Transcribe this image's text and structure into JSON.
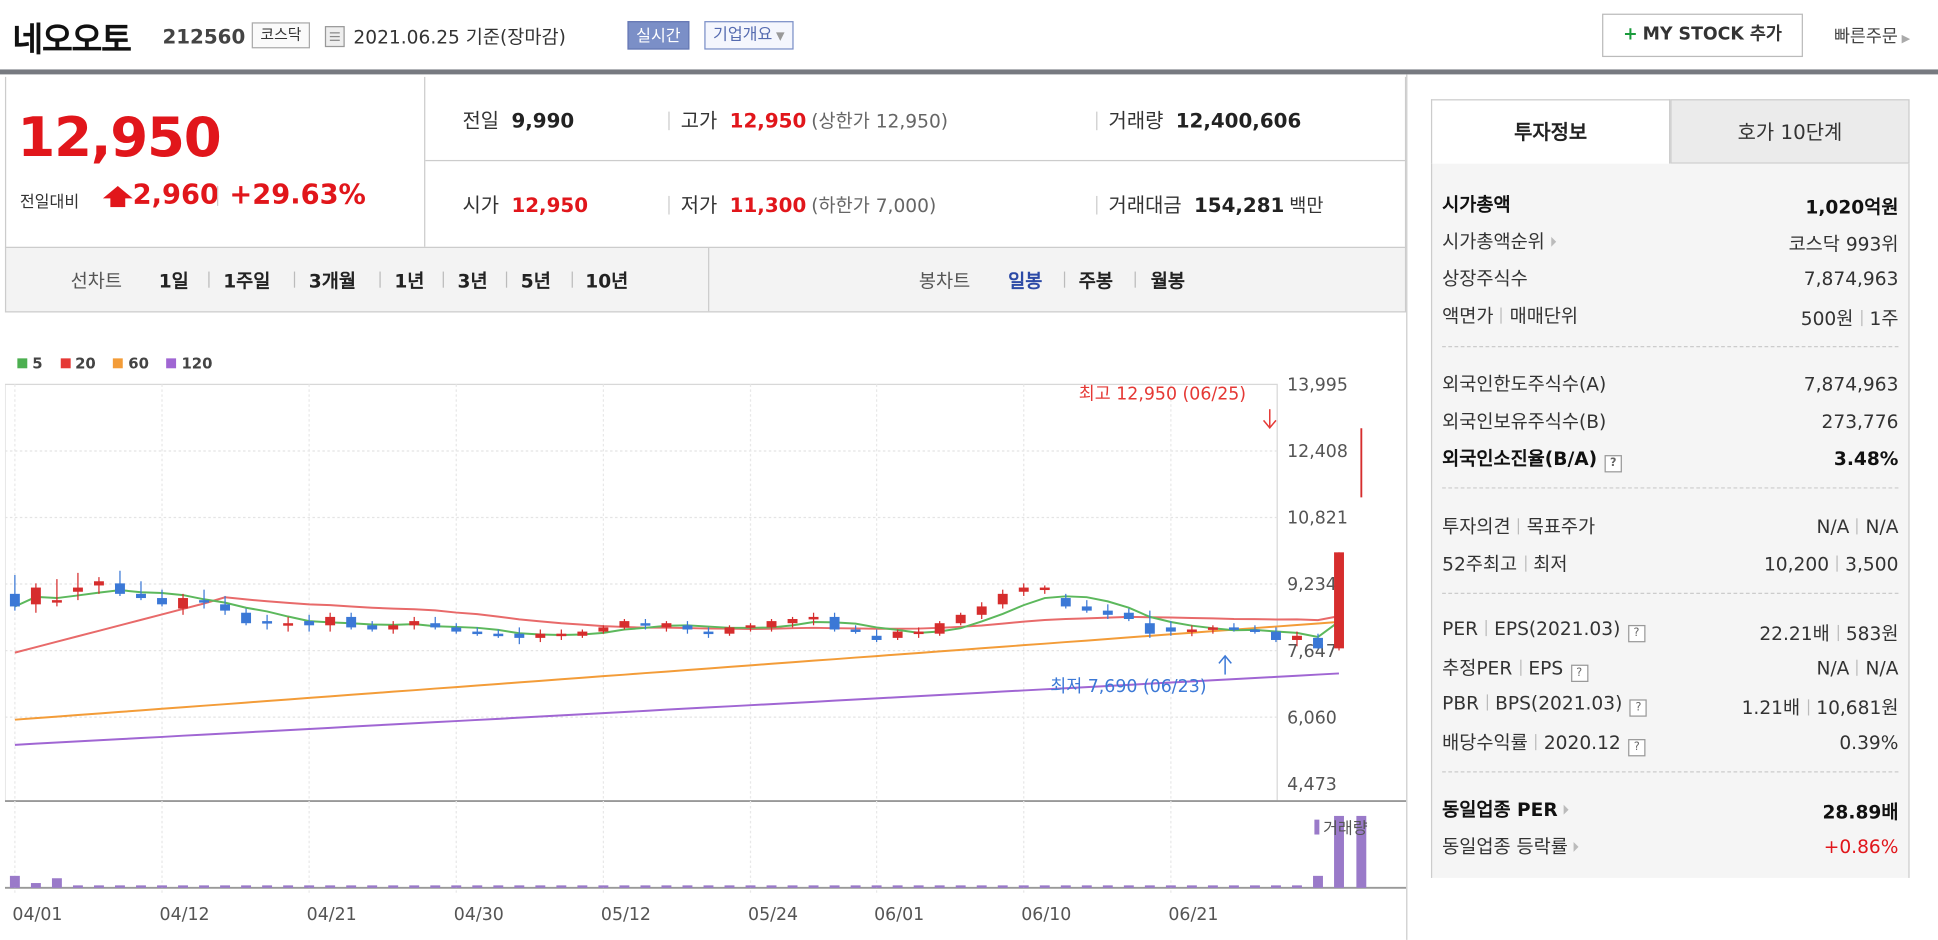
{
  "stock": {
    "name": "네오오토",
    "code": "212560",
    "market": "코스닥",
    "as_of": "2021.06.25 기준(장마감)",
    "live_label": "실시간",
    "corp_label": "기업개요",
    "mystock_label": "MY STOCK 추가",
    "mystock_plus": "+",
    "quick_order": "빠른주문"
  },
  "price": {
    "current": "12,950",
    "compare_label": "전일대비",
    "diff": "2,960",
    "rate": "+29.63%",
    "prev_label": "전일",
    "prev": "9,990",
    "high_label": "고가",
    "high": "12,950",
    "upper_limit": "(상한가 12,950)",
    "volume_label": "거래량",
    "volume": "12,400,606",
    "open_label": "시가",
    "open": "12,950",
    "low_label": "저가",
    "low": "11,300",
    "lower_limit": "(하한가 7,000)",
    "amount_label": "거래대금",
    "amount": "154,281",
    "amount_unit": "백만"
  },
  "chart_tabs": {
    "line_label": "선차트",
    "line_items": [
      "1일",
      "1주일",
      "3개월",
      "1년",
      "3년",
      "5년",
      "10년"
    ],
    "candle_label": "봉차트",
    "candle_items": [
      "일봉",
      "주봉",
      "월봉"
    ],
    "candle_selected": "일봉"
  },
  "chart_data": {
    "type": "candlestick",
    "legend": [
      {
        "name": "5",
        "color": "#4caf50"
      },
      {
        "name": "20",
        "color": "#e53935"
      },
      {
        "name": "60",
        "color": "#f39c38"
      },
      {
        "name": "120",
        "color": "#a066d3"
      }
    ],
    "y_ticks": [
      "13,995",
      "12,408",
      "10,821",
      "9,234",
      "7,647",
      "6,060",
      "4,473"
    ],
    "ylim": [
      4473,
      13995
    ],
    "x_ticks": [
      "04/01",
      "04/12",
      "04/21",
      "04/30",
      "05/12",
      "05/24",
      "06/01",
      "06/10",
      "06/21"
    ],
    "x_tick_index": [
      0,
      7,
      14,
      21,
      28,
      35,
      41,
      48,
      55
    ],
    "annotation_high": "최고 12,950 (06/25)",
    "annotation_low": "최저 7,690 (06/23)",
    "volume_label": "거래량",
    "candles": [
      [
        9000,
        9450,
        8600,
        8700
      ],
      [
        8750,
        9250,
        8550,
        9150
      ],
      [
        8800,
        9350,
        8700,
        8850
      ],
      [
        9050,
        9500,
        8850,
        9150
      ],
      [
        9200,
        9400,
        9000,
        9300
      ],
      [
        9250,
        9550,
        8950,
        9000
      ],
      [
        9000,
        9300,
        8850,
        8900
      ],
      [
        8900,
        9100,
        8700,
        8750
      ],
      [
        8650,
        9000,
        8500,
        8900
      ],
      [
        8850,
        9100,
        8650,
        8800
      ],
      [
        8750,
        8950,
        8500,
        8600
      ],
      [
        8550,
        8650,
        8250,
        8300
      ],
      [
        8350,
        8500,
        8150,
        8300
      ],
      [
        8250,
        8450,
        8100,
        8300
      ],
      [
        8350,
        8500,
        8100,
        8250
      ],
      [
        8250,
        8550,
        8100,
        8450
      ],
      [
        8450,
        8550,
        8150,
        8200
      ],
      [
        8250,
        8350,
        8100,
        8150
      ],
      [
        8150,
        8350,
        8050,
        8250
      ],
      [
        8250,
        8450,
        8150,
        8350
      ],
      [
        8300,
        8450,
        8150,
        8200
      ],
      [
        8200,
        8300,
        8050,
        8100
      ],
      [
        8100,
        8200,
        8000,
        8050
      ],
      [
        8050,
        8150,
        7950,
        8000
      ],
      [
        8050,
        8200,
        7800,
        7950
      ],
      [
        7950,
        8150,
        7850,
        8050
      ],
      [
        8000,
        8150,
        7900,
        8050
      ],
      [
        8000,
        8150,
        7950,
        8100
      ],
      [
        8100,
        8250,
        8050,
        8200
      ],
      [
        8200,
        8400,
        8150,
        8350
      ],
      [
        8300,
        8400,
        8150,
        8250
      ],
      [
        8200,
        8350,
        8100,
        8300
      ],
      [
        8250,
        8350,
        8050,
        8150
      ],
      [
        8100,
        8200,
        7950,
        8050
      ],
      [
        8050,
        8250,
        8000,
        8200
      ],
      [
        8200,
        8300,
        8100,
        8250
      ],
      [
        8200,
        8400,
        8100,
        8350
      ],
      [
        8300,
        8450,
        8200,
        8400
      ],
      [
        8400,
        8550,
        8250,
        8450
      ],
      [
        8450,
        8550,
        8100,
        8150
      ],
      [
        8150,
        8250,
        8050,
        8100
      ],
      [
        8000,
        8150,
        7850,
        7900
      ],
      [
        7950,
        8150,
        7900,
        8100
      ],
      [
        8050,
        8200,
        7950,
        8100
      ],
      [
        8050,
        8350,
        8000,
        8300
      ],
      [
        8300,
        8550,
        8250,
        8500
      ],
      [
        8500,
        8800,
        8400,
        8700
      ],
      [
        8750,
        9100,
        8650,
        9000
      ],
      [
        9050,
        9250,
        8950,
        9150
      ],
      [
        9100,
        9200,
        9000,
        9150
      ],
      [
        8900,
        9000,
        8650,
        8700
      ],
      [
        8700,
        8850,
        8550,
        8600
      ],
      [
        8600,
        8750,
        8400,
        8500
      ],
      [
        8550,
        8650,
        8350,
        8400
      ],
      [
        8300,
        8600,
        7950,
        8050
      ],
      [
        8200,
        8350,
        8000,
        8100
      ],
      [
        8100,
        8250,
        7990,
        8150
      ],
      [
        8150,
        8250,
        8050,
        8200
      ],
      [
        8200,
        8300,
        8100,
        8150
      ],
      [
        8150,
        8250,
        8050,
        8100
      ],
      [
        8100,
        8200,
        7850,
        7900
      ],
      [
        7900,
        8100,
        7750,
        8000
      ],
      [
        7950,
        8050,
        7690,
        7700
      ],
      [
        7700,
        9990,
        7650,
        9990
      ]
    ],
    "volumes": [
      5,
      2,
      4,
      1,
      1,
      1,
      1,
      1,
      1,
      1,
      1,
      1,
      1,
      1,
      1,
      0.5,
      0.5,
      0.5,
      0.5,
      0.5,
      0.5,
      1,
      0.5,
      0.5,
      0.5,
      0.5,
      0.5,
      0.5,
      0.5,
      0.5,
      0.5,
      0.5,
      0.5,
      0.5,
      0.5,
      0.5,
      0.5,
      0.5,
      0.5,
      0.5,
      1,
      0.5,
      1,
      1,
      0.5,
      0.5,
      0.5,
      0.5,
      0.5,
      0.5,
      0.5,
      0.5,
      0.5,
      0.5,
      0.5,
      0.5,
      0.5,
      0.5,
      0.5,
      0.5,
      0.5,
      0.5,
      5,
      30
    ]
  },
  "info": {
    "tab_invest": "투자정보",
    "tab_hoga": "호가 10단계",
    "mcap_label": "시가총액",
    "mcap": "1,020억원",
    "mcap_rank_label": "시가총액순위",
    "mcap_rank": "코스닥 993위",
    "shares_label": "상장주식수",
    "shares": "7,874,963",
    "par_label": "액면가",
    "unit_label": "매매단위",
    "par": "500원",
    "unit": "1주",
    "foreign_limit_label": "외국인한도주식수(A)",
    "foreign_limit": "7,874,963",
    "foreign_hold_label": "외국인보유주식수(B)",
    "foreign_hold": "273,776",
    "foreign_rate_label": "외국인소진율(B/A)",
    "foreign_rate": "3.48%",
    "opinion_label": "투자의견",
    "target_label": "목표주가",
    "opinion": "N/A",
    "target": "N/A",
    "w52_high_label": "52주최고",
    "w52_low_label": "최저",
    "w52_high": "10,200",
    "w52_low": "3,500",
    "per_label": "PER",
    "eps_label": "EPS(2021.03)",
    "per": "22.21배",
    "eps": "583원",
    "est_per_label": "추정PER",
    "est_eps_label": "EPS",
    "est_per": "N/A",
    "est_eps": "N/A",
    "pbr_label": "PBR",
    "bps_label": "BPS(2021.03)",
    "pbr": "1.21배",
    "bps": "10,681원",
    "div_label": "배당수익률",
    "div_date": "2020.12",
    "div": "0.39%",
    "sector_per_label": "동일업종 PER",
    "sector_per": "28.89배",
    "sector_rate_label": "동일업종 등락률",
    "sector_rate": "+0.86%"
  }
}
